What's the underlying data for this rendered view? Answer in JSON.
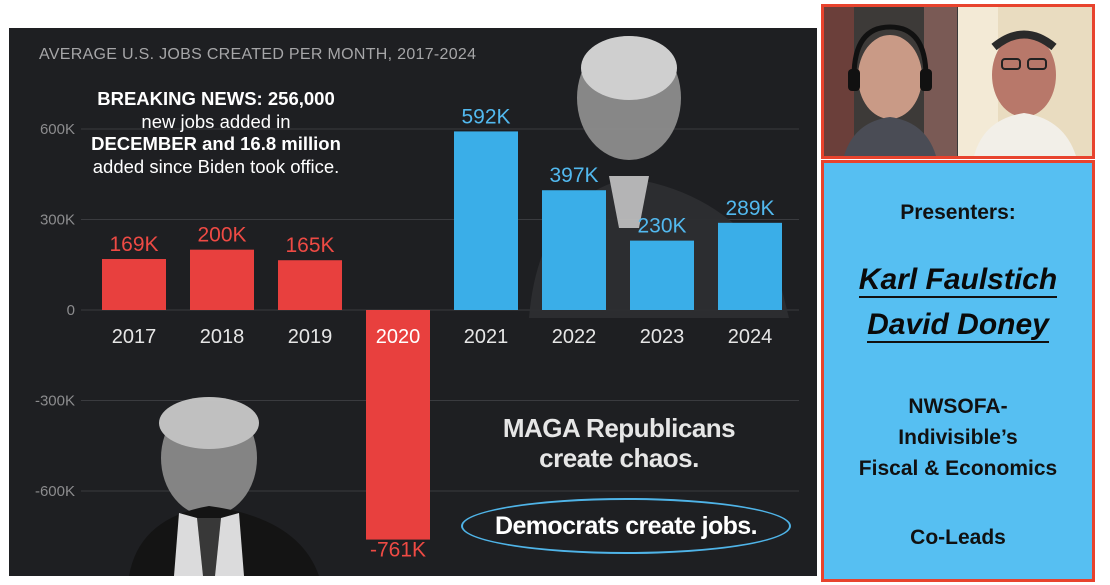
{
  "chart_data": {
    "type": "bar",
    "title": "AVERAGE U.S. JOBS CREATED PER MONTH, 2017-2024",
    "categories": [
      "2017",
      "2018",
      "2019",
      "2020",
      "2021",
      "2022",
      "2023",
      "2024"
    ],
    "values": [
      169,
      200,
      165,
      -761,
      592,
      397,
      230,
      289
    ],
    "value_labels": [
      "169K",
      "200K",
      "165K",
      "-761K",
      "592K",
      "397K",
      "230K",
      "289K"
    ],
    "bar_colors": [
      "#e8403e",
      "#e8403e",
      "#e8403e",
      "#e8403e",
      "#3aaee8",
      "#3aaee8",
      "#3aaee8",
      "#3aaee8"
    ],
    "label_colors": [
      "#ee4a44",
      "#ee4a44",
      "#ee4a44",
      "#ee4a44",
      "#52b9ef",
      "#52b9ef",
      "#52b9ef",
      "#52b9ef"
    ],
    "y_ticks": [
      {
        "value": 600,
        "label": "600K"
      },
      {
        "value": 300,
        "label": "300K"
      },
      {
        "value": 0,
        "label": "0"
      },
      {
        "value": -300,
        "label": "-300K"
      },
      {
        "value": -600,
        "label": "-600K"
      }
    ],
    "ylim": [
      -850,
      720
    ],
    "grid": true,
    "xlabel": "",
    "ylabel": "",
    "annotations": {
      "breaking": [
        "BREAKING NEWS: 256,000",
        "new jobs added in",
        "DECEMBER and 16.8 million",
        "added since Biden took office."
      ],
      "slogan_1": [
        "MAGA Republicans",
        "create chaos."
      ],
      "slogan_2": "Democrats create jobs."
    }
  },
  "presenters": {
    "heading": "Presenters:",
    "names": [
      "Karl Faulstich",
      "David Doney"
    ],
    "org_lines": [
      "NWSOFA-",
      "Indivisible’s",
      "Fiscal & Economics"
    ],
    "role": "Co-Leads"
  },
  "colors": {
    "frame_red": "#e8432d",
    "presenter_bg": "#56bff2",
    "chart_bg": "#1e1f22"
  }
}
